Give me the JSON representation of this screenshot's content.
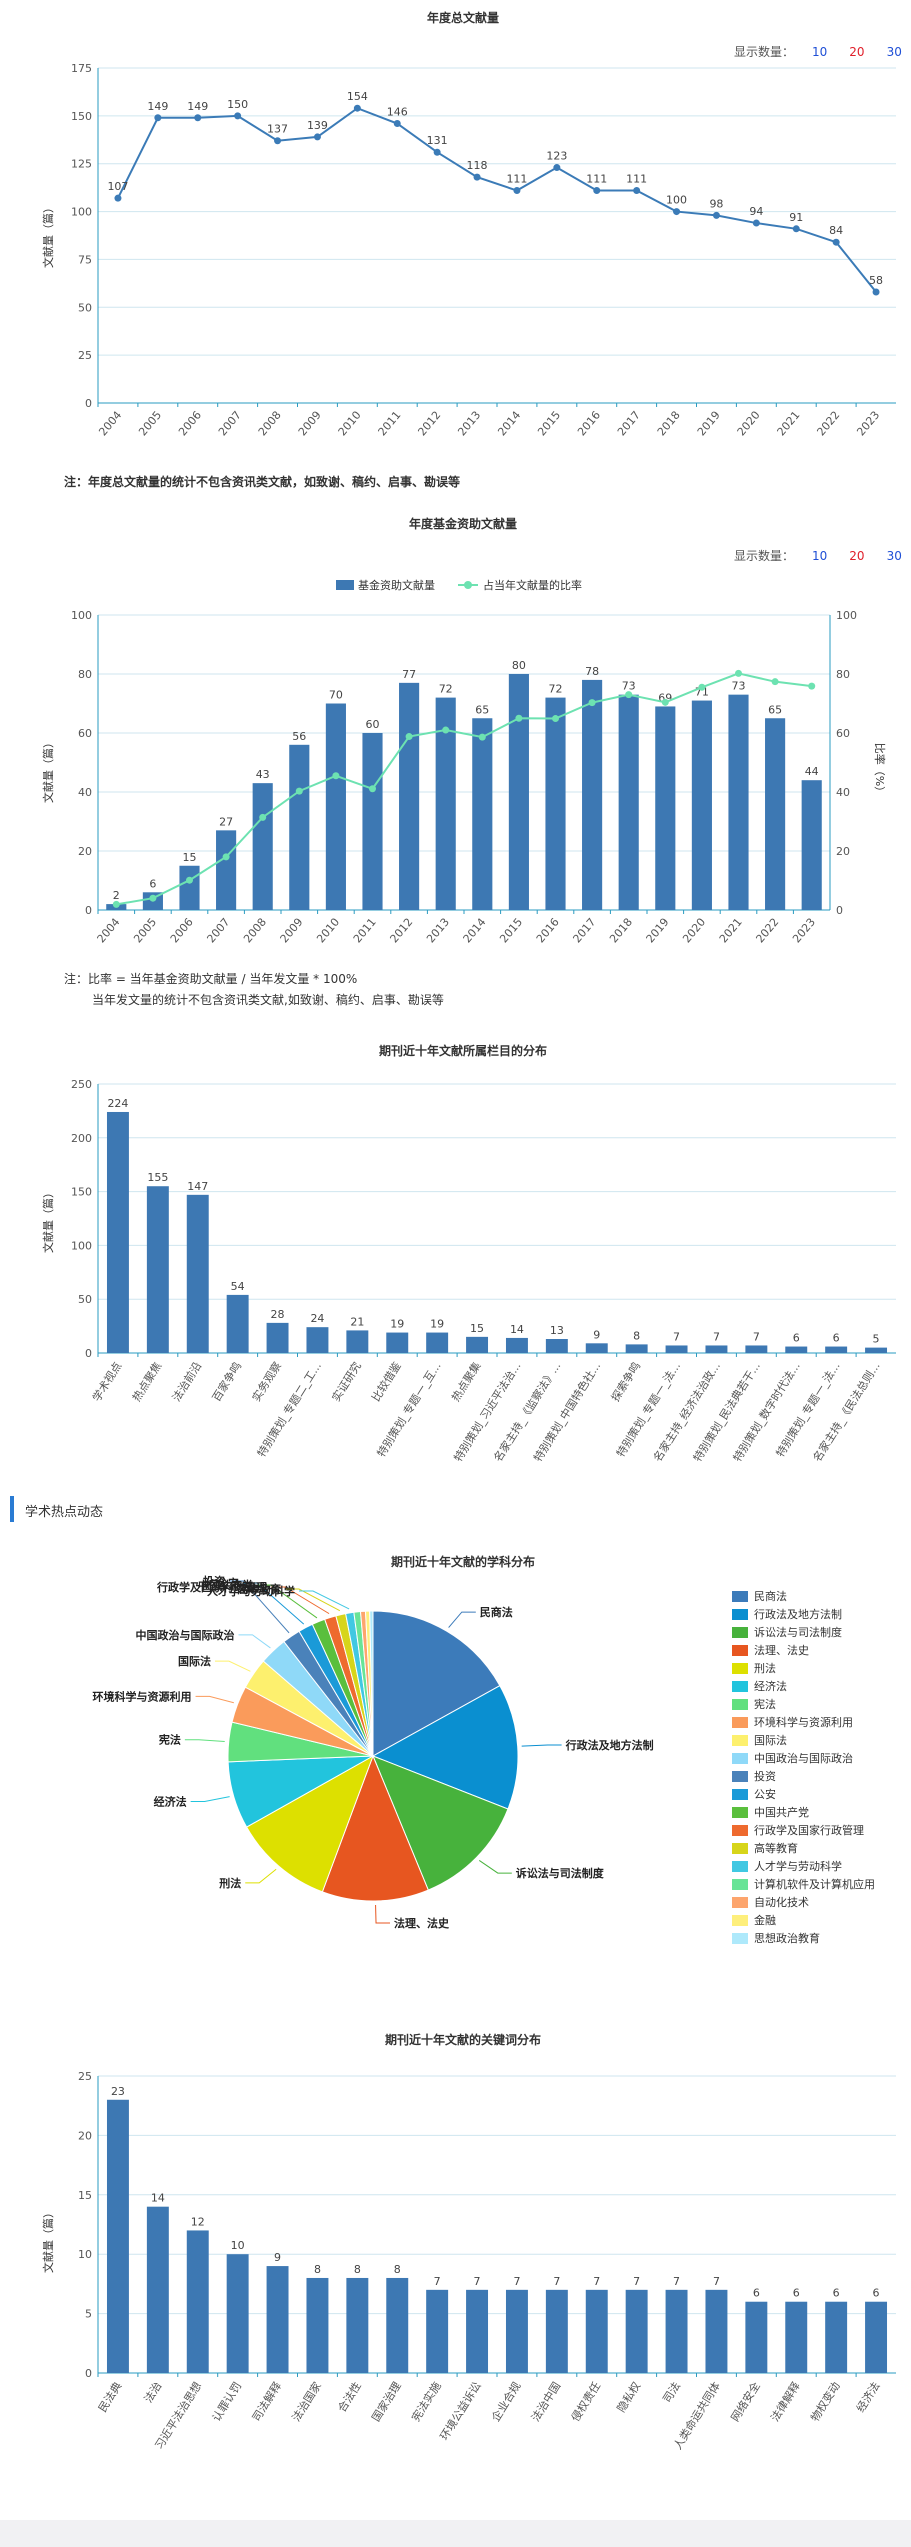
{
  "controls": {
    "label": "显示数量：",
    "options": [
      "10",
      "20",
      "30"
    ],
    "colors": [
      "#1f4fd6",
      "#e0202b",
      "#1f4fd6"
    ]
  },
  "chart_data": [
    {
      "type": "line",
      "title": "年度总文献量",
      "ylabel": "文献量（篇）",
      "ylim": [
        0,
        175
      ],
      "yticks": [
        0,
        25,
        50,
        75,
        100,
        125,
        150,
        175
      ],
      "categories": [
        "2004",
        "2005",
        "2006",
        "2007",
        "2008",
        "2009",
        "2010",
        "2011",
        "2012",
        "2013",
        "2014",
        "2015",
        "2016",
        "2017",
        "2018",
        "2019",
        "2020",
        "2021",
        "2022",
        "2023"
      ],
      "values": [
        107,
        149,
        149,
        150,
        137,
        139,
        154,
        146,
        131,
        118,
        111,
        123,
        111,
        111,
        100,
        98,
        94,
        91,
        84,
        58
      ],
      "color": "#3b7bb7",
      "note": "注：年度总文献量的统计不包含资讯类文献，如致谢、稿约、启事、勘误等"
    },
    {
      "type": "bar+line",
      "title": "年度基金资助文献量",
      "ylabel": "文献量（篇）",
      "y2label": "比率（%）",
      "ylim": [
        0,
        100
      ],
      "yticks": [
        0,
        20,
        40,
        60,
        80,
        100
      ],
      "legend": [
        "基金资助文献量",
        "占当年文献量的比率"
      ],
      "categories": [
        "2004",
        "2005",
        "2006",
        "2007",
        "2008",
        "2009",
        "2010",
        "2011",
        "2012",
        "2013",
        "2014",
        "2015",
        "2016",
        "2017",
        "2018",
        "2019",
        "2020",
        "2021",
        "2022",
        "2023"
      ],
      "series": [
        {
          "name": "基金资助文献量",
          "values": [
            2,
            6,
            15,
            27,
            43,
            56,
            70,
            60,
            77,
            72,
            65,
            80,
            72,
            78,
            73,
            69,
            71,
            73,
            65,
            44
          ],
          "color": "#3d78b3"
        },
        {
          "name": "占当年文献量的比率",
          "values": [
            1.9,
            4.0,
            10.1,
            18.0,
            31.4,
            40.3,
            45.5,
            41.1,
            58.8,
            61.0,
            58.6,
            65.0,
            64.9,
            70.3,
            73.0,
            70.4,
            75.5,
            80.2,
            77.4,
            75.9
          ],
          "color": "#6de2b1"
        }
      ],
      "note1": "注：比率 = 当年基金资助文献量 / 当年发文量 * 100%",
      "note2": "当年发文量的统计不包含资讯类文献,如致谢、稿约、启事、勘误等"
    },
    {
      "type": "bar",
      "title": "期刊近十年文献所属栏目的分布",
      "ylabel": "文献量（篇）",
      "ylim": [
        0,
        250
      ],
      "yticks": [
        0,
        50,
        100,
        150,
        200,
        250
      ],
      "categories": [
        "学术视点",
        "热点聚焦",
        "法治前沿",
        "百家争鸣",
        "实务观察",
        "特别策划_专题二_工...",
        "实证研究",
        "比较借鉴",
        "特别策划_专题一_互...",
        "热点聚集",
        "特别策划_习近平法治...",
        "名家主持_《监察法》...",
        "特别策划_中国特色社...",
        "探索争鸣",
        "特别策划_专题一_法...",
        "名家主持_经济法治政...",
        "特别策划_民法典若干...",
        "特别策划_数字时代法...",
        "特别策划_专题一_法...",
        "名家主持_《民法总则..."
      ],
      "values": [
        224,
        155,
        147,
        54,
        28,
        24,
        21,
        19,
        19,
        15,
        14,
        13,
        9,
        8,
        7,
        7,
        7,
        6,
        6,
        5
      ],
      "color": "#3d78b3"
    },
    {
      "type": "pie",
      "title": "期刊近十年文献的学科分布",
      "labels": [
        "民商法",
        "行政法及地方法制",
        "诉讼法与司法制度",
        "法理、法史",
        "刑法",
        "经济法",
        "宪法",
        "环境科学与资源利用",
        "国际法",
        "中国政治与国际政治",
        "投资",
        "公安",
        "中国共产党",
        "行政学及国家行政管理",
        "高等教育",
        "人才学与劳动科学",
        "计算机软件及计算机应用",
        "自动化技术",
        "金融",
        "思想政治教育"
      ],
      "values": [
        185,
        153,
        140,
        130,
        122,
        82,
        48,
        45,
        38,
        34,
        22,
        18,
        16,
        14,
        12,
        10,
        8,
        6,
        5,
        4
      ],
      "colors": [
        "#3c7bba",
        "#0a8fd0",
        "#47b23c",
        "#e75620",
        "#dde000",
        "#22c4dd",
        "#61e07e",
        "#fa9b5b",
        "#fdf06e",
        "#8fd9f8",
        "#4a82ba",
        "#1a9ad8",
        "#5abf3d",
        "#ee6a2e",
        "#d7d51a",
        "#41c8e2",
        "#68e497",
        "#fda56d",
        "#feef7c",
        "#aee9fb"
      ]
    },
    {
      "type": "bar",
      "title": "期刊近十年文献的关键词分布",
      "ylabel": "文献量（篇）",
      "ylim": [
        0,
        25
      ],
      "yticks": [
        0,
        5,
        10,
        15,
        20,
        25
      ],
      "categories": [
        "民法典",
        "法治",
        "习近平法治思想",
        "认罪认罚",
        "司法解释",
        "法治国家",
        "合法性",
        "国家治理",
        "宪法实施",
        "环境公益诉讼",
        "企业合规",
        "法治中国",
        "侵权责任",
        "隐私权",
        "司法",
        "人类命运共同体",
        "网络安全",
        "法律解释",
        "物权变动",
        "经济法"
      ],
      "values": [
        23,
        14,
        12,
        10,
        9,
        8,
        8,
        8,
        7,
        7,
        7,
        7,
        7,
        7,
        7,
        7,
        6,
        6,
        6,
        6
      ],
      "color": "#3d78b3"
    }
  ],
  "section": {
    "title": "学术热点动态"
  }
}
